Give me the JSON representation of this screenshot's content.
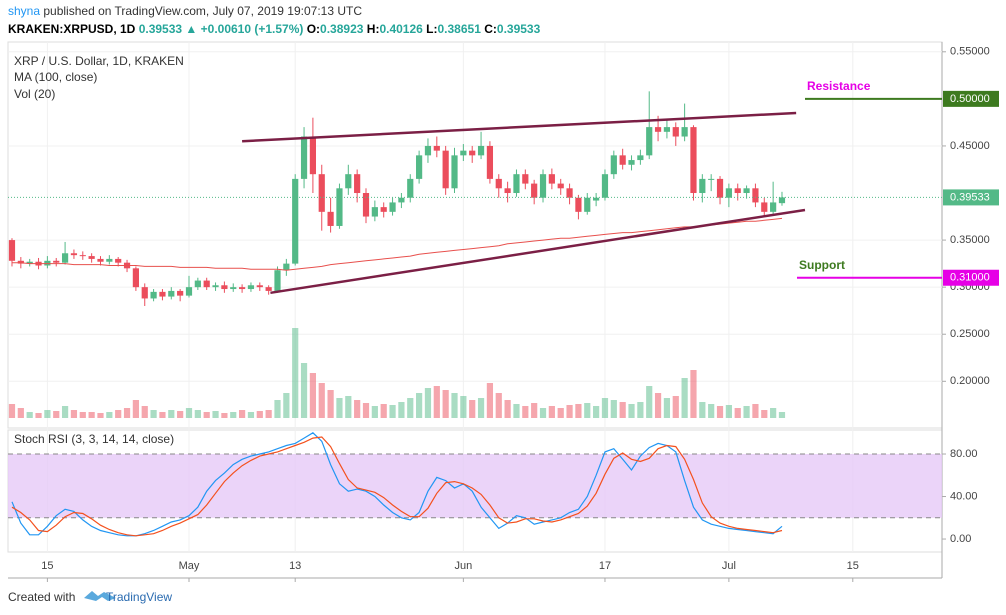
{
  "header": {
    "user": "shyna",
    "published": " published on TradingView.com, July 07, 2019 19:07:13 UTC",
    "line2": [
      "KRAKEN:XRPUSD, 1D",
      " 0.39533",
      " ▲",
      " +0.00610 (+1.57%)",
      " O:",
      "0.38923",
      " H:",
      "0.40126",
      " L:",
      "0.38651",
      " C:",
      "0.39533"
    ],
    "line2_colors": [
      "#000000",
      "#26a69a",
      "#26a69a",
      "#26a69a",
      "#000000",
      "#26a69a",
      "#000000",
      "#26a69a",
      "#000000",
      "#26a69a",
      "#000000",
      "#26a69a"
    ]
  },
  "chart_data": {
    "type": "candlestick",
    "legend": [
      "XRP / U.S. Dollar, 1D, KRAKEN",
      "MA (100, close)",
      "Vol (20)"
    ],
    "up_color": "#53b987",
    "down_color": "#eb4d5c",
    "ma_color": "#e8504d",
    "xlim": [
      -0.45,
      105.08
    ],
    "ylim": [
      0.1504,
      0.5604
    ],
    "xticks": [
      {
        "value": 4,
        "label": "15"
      },
      {
        "value": 20,
        "label": "May"
      },
      {
        "value": 32,
        "label": "13"
      },
      {
        "value": 51,
        "label": "Jun"
      },
      {
        "value": 67,
        "label": "17"
      },
      {
        "value": 81,
        "label": "Jul"
      },
      {
        "value": 95,
        "label": "15"
      }
    ],
    "yticks": [
      {
        "value": 0.55,
        "label": "0.55000"
      },
      {
        "value": 0.45,
        "label": "0.45000"
      },
      {
        "value": 0.35,
        "label": "0.35000"
      },
      {
        "value": 0.3,
        "label": "0.30000"
      },
      {
        "value": 0.25,
        "label": "0.25000"
      },
      {
        "value": 0.2,
        "label": "0.20000"
      }
    ],
    "price_tags": [
      {
        "value": 0.5,
        "label": "0.50000",
        "color": "#3d7a1f"
      },
      {
        "value": 0.39533,
        "label": "0.39533",
        "color": "#53b987"
      },
      {
        "value": 0.31,
        "label": "0.31000",
        "color": "#e600e6"
      }
    ],
    "hlines": [
      {
        "value": 0.5,
        "label": "Resistance",
        "line_color": "#3d7a1f",
        "label_color": "#e600e6"
      },
      {
        "value": 0.31,
        "label": "Support",
        "line_color": "#e600e6",
        "label_color": "#3d7a1f"
      }
    ],
    "trendlines": [
      {
        "color": "#7b1f45",
        "points": [
          [
            26,
            0.455
          ],
          [
            88.6,
            0.485
          ]
        ]
      },
      {
        "color": "#7b1f45",
        "points": [
          [
            29.2,
            0.294
          ],
          [
            89.6,
            0.382
          ]
        ]
      }
    ],
    "ohlc": [
      [
        0.35,
        0.352,
        0.322,
        0.328
      ],
      [
        0.328,
        0.332,
        0.32,
        0.325
      ],
      [
        0.325,
        0.33,
        0.322,
        0.327
      ],
      [
        0.327,
        0.331,
        0.319,
        0.323
      ],
      [
        0.323,
        0.333,
        0.32,
        0.328
      ],
      [
        0.328,
        0.331,
        0.322,
        0.326
      ],
      [
        0.326,
        0.348,
        0.324,
        0.336
      ],
      [
        0.336,
        0.34,
        0.33,
        0.334
      ],
      [
        0.334,
        0.338,
        0.329,
        0.333
      ],
      [
        0.333,
        0.336,
        0.326,
        0.33
      ],
      [
        0.33,
        0.333,
        0.323,
        0.327
      ],
      [
        0.327,
        0.334,
        0.324,
        0.33
      ],
      [
        0.33,
        0.332,
        0.322,
        0.326
      ],
      [
        0.326,
        0.329,
        0.316,
        0.32
      ],
      [
        0.32,
        0.322,
        0.296,
        0.3
      ],
      [
        0.3,
        0.304,
        0.28,
        0.288
      ],
      [
        0.288,
        0.298,
        0.285,
        0.295
      ],
      [
        0.295,
        0.298,
        0.286,
        0.29
      ],
      [
        0.29,
        0.3,
        0.287,
        0.296
      ],
      [
        0.296,
        0.298,
        0.285,
        0.291
      ],
      [
        0.291,
        0.312,
        0.289,
        0.3
      ],
      [
        0.3,
        0.31,
        0.297,
        0.307
      ],
      [
        0.307,
        0.31,
        0.297,
        0.3
      ],
      [
        0.3,
        0.305,
        0.296,
        0.302
      ],
      [
        0.302,
        0.306,
        0.294,
        0.298
      ],
      [
        0.298,
        0.304,
        0.295,
        0.3
      ],
      [
        0.3,
        0.303,
        0.294,
        0.298
      ],
      [
        0.298,
        0.305,
        0.295,
        0.302
      ],
      [
        0.302,
        0.305,
        0.296,
        0.3
      ],
      [
        0.3,
        0.302,
        0.292,
        0.296
      ],
      [
        0.296,
        0.322,
        0.294,
        0.318
      ],
      [
        0.318,
        0.33,
        0.312,
        0.325
      ],
      [
        0.325,
        0.42,
        0.323,
        0.415
      ],
      [
        0.415,
        0.47,
        0.405,
        0.46
      ],
      [
        0.46,
        0.48,
        0.4,
        0.42
      ],
      [
        0.42,
        0.43,
        0.36,
        0.38
      ],
      [
        0.38,
        0.395,
        0.358,
        0.365
      ],
      [
        0.365,
        0.41,
        0.362,
        0.405
      ],
      [
        0.405,
        0.43,
        0.398,
        0.42
      ],
      [
        0.42,
        0.425,
        0.39,
        0.4
      ],
      [
        0.4,
        0.405,
        0.368,
        0.375
      ],
      [
        0.375,
        0.392,
        0.37,
        0.385
      ],
      [
        0.385,
        0.39,
        0.374,
        0.38
      ],
      [
        0.38,
        0.395,
        0.376,
        0.39
      ],
      [
        0.39,
        0.4,
        0.384,
        0.395
      ],
      [
        0.395,
        0.42,
        0.39,
        0.415
      ],
      [
        0.415,
        0.445,
        0.41,
        0.44
      ],
      [
        0.44,
        0.458,
        0.432,
        0.45
      ],
      [
        0.45,
        0.46,
        0.438,
        0.445
      ],
      [
        0.445,
        0.45,
        0.398,
        0.405
      ],
      [
        0.405,
        0.448,
        0.4,
        0.44
      ],
      [
        0.44,
        0.452,
        0.434,
        0.445
      ],
      [
        0.445,
        0.45,
        0.432,
        0.44
      ],
      [
        0.44,
        0.465,
        0.436,
        0.45
      ],
      [
        0.45,
        0.455,
        0.41,
        0.415
      ],
      [
        0.415,
        0.42,
        0.395,
        0.405
      ],
      [
        0.405,
        0.412,
        0.39,
        0.4
      ],
      [
        0.4,
        0.425,
        0.396,
        0.42
      ],
      [
        0.42,
        0.425,
        0.404,
        0.41
      ],
      [
        0.41,
        0.414,
        0.388,
        0.395
      ],
      [
        0.395,
        0.425,
        0.39,
        0.42
      ],
      [
        0.42,
        0.426,
        0.404,
        0.41
      ],
      [
        0.41,
        0.415,
        0.398,
        0.405
      ],
      [
        0.405,
        0.41,
        0.388,
        0.395
      ],
      [
        0.395,
        0.398,
        0.372,
        0.38
      ],
      [
        0.38,
        0.4,
        0.377,
        0.395
      ],
      [
        0.392,
        0.4,
        0.386,
        0.395
      ],
      [
        0.395,
        0.425,
        0.392,
        0.42
      ],
      [
        0.42,
        0.445,
        0.415,
        0.44
      ],
      [
        0.44,
        0.447,
        0.425,
        0.43
      ],
      [
        0.43,
        0.44,
        0.424,
        0.435
      ],
      [
        0.435,
        0.446,
        0.43,
        0.44
      ],
      [
        0.44,
        0.508,
        0.436,
        0.47
      ],
      [
        0.47,
        0.482,
        0.455,
        0.465
      ],
      [
        0.465,
        0.478,
        0.458,
        0.47
      ],
      [
        0.47,
        0.475,
        0.45,
        0.46
      ],
      [
        0.46,
        0.495,
        0.455,
        0.47
      ],
      [
        0.47,
        0.472,
        0.392,
        0.4
      ],
      [
        0.4,
        0.42,
        0.39,
        0.415
      ],
      [
        0.415,
        0.42,
        0.402,
        0.415
      ],
      [
        0.415,
        0.418,
        0.388,
        0.395
      ],
      [
        0.395,
        0.41,
        0.385,
        0.405
      ],
      [
        0.405,
        0.41,
        0.392,
        0.4
      ],
      [
        0.4,
        0.408,
        0.394,
        0.405
      ],
      [
        0.405,
        0.41,
        0.385,
        0.39
      ],
      [
        0.39,
        0.395,
        0.376,
        0.38
      ],
      [
        0.38,
        0.412,
        0.377,
        0.39
      ],
      [
        0.38923,
        0.40126,
        0.38651,
        0.39533
      ]
    ],
    "ma": [
      0.326,
      0.326,
      0.325,
      0.325,
      0.325,
      0.325,
      0.325,
      0.324,
      0.324,
      0.324,
      0.324,
      0.323,
      0.323,
      0.323,
      0.323,
      0.322,
      0.322,
      0.322,
      0.322,
      0.321,
      0.321,
      0.321,
      0.321,
      0.32,
      0.32,
      0.32,
      0.32,
      0.319,
      0.319,
      0.319,
      0.319,
      0.318,
      0.319,
      0.32,
      0.321,
      0.322,
      0.324,
      0.325,
      0.326,
      0.327,
      0.328,
      0.329,
      0.33,
      0.331,
      0.332,
      0.333,
      0.335,
      0.336,
      0.337,
      0.338,
      0.339,
      0.34,
      0.341,
      0.342,
      0.343,
      0.344,
      0.346,
      0.347,
      0.348,
      0.349,
      0.35,
      0.351,
      0.352,
      0.352,
      0.353,
      0.354,
      0.355,
      0.356,
      0.357,
      0.358,
      0.358,
      0.359,
      0.36,
      0.361,
      0.362,
      0.363,
      0.364,
      0.364,
      0.365,
      0.366,
      0.367,
      0.368,
      0.369,
      0.37,
      0.37,
      0.371,
      0.372,
      0.373
    ],
    "vol_lim": [
      0,
      100
    ],
    "volume": [
      14,
      10,
      6,
      5,
      8,
      7,
      12,
      8,
      6,
      6,
      5,
      6,
      8,
      10,
      18,
      12,
      8,
      6,
      8,
      7,
      10,
      8,
      6,
      7,
      5,
      6,
      8,
      6,
      7,
      8,
      18,
      25,
      90,
      55,
      45,
      35,
      28,
      20,
      22,
      18,
      15,
      12,
      14,
      13,
      16,
      20,
      25,
      30,
      32,
      28,
      25,
      22,
      18,
      20,
      35,
      25,
      18,
      14,
      12,
      15,
      10,
      12,
      10,
      13,
      14,
      15,
      12,
      20,
      18,
      16,
      14,
      16,
      32,
      25,
      20,
      22,
      40,
      48,
      16,
      14,
      12,
      13,
      10,
      12,
      14,
      8,
      10,
      6
    ],
    "stoch": {
      "label": "Stoch RSI (3, 3, 14, 14, close)",
      "ylim": [
        -12.2,
        102.6
      ],
      "band": [
        20,
        80
      ],
      "band_color": "#e6c9f7",
      "yticks": [
        {
          "value": 80,
          "label": "80.00"
        },
        {
          "value": 40,
          "label": "40.00"
        },
        {
          "value": 0,
          "label": "0.00"
        }
      ],
      "series": [
        {
          "color": "#2196f3",
          "values": [
            35,
            15,
            4,
            4,
            12,
            22,
            28,
            26,
            18,
            12,
            8,
            6,
            4,
            3,
            3,
            5,
            8,
            12,
            16,
            18,
            22,
            30,
            45,
            55,
            62,
            70,
            75,
            78,
            80,
            82,
            85,
            88,
            90,
            95,
            100,
            92,
            70,
            52,
            45,
            47,
            45,
            40,
            32,
            25,
            20,
            18,
            25,
            45,
            58,
            55,
            48,
            52,
            45,
            30,
            20,
            10,
            15,
            22,
            20,
            14,
            16,
            18,
            20,
            25,
            28,
            40,
            60,
            82,
            85,
            75,
            65,
            78,
            86,
            90,
            88,
            82,
            55,
            30,
            18,
            14,
            12,
            10,
            9,
            8,
            7,
            6,
            5,
            12
          ]
        },
        {
          "color": "#f4511e",
          "values": [
            30,
            25,
            18,
            8,
            7,
            13,
            21,
            25,
            24,
            19,
            13,
            9,
            6,
            4,
            3,
            4,
            5,
            8,
            12,
            15,
            19,
            23,
            32,
            43,
            54,
            62,
            69,
            74,
            78,
            80,
            82,
            85,
            88,
            91,
            95,
            96,
            87,
            71,
            56,
            48,
            46,
            44,
            39,
            32,
            26,
            21,
            21,
            29,
            43,
            53,
            54,
            52,
            48,
            42,
            32,
            20,
            15,
            16,
            19,
            19,
            17,
            16,
            18,
            21,
            24,
            31,
            43,
            61,
            76,
            81,
            75,
            73,
            76,
            85,
            88,
            87,
            75,
            56,
            34,
            21,
            15,
            12,
            10,
            9,
            8,
            7,
            6,
            8
          ]
        }
      ]
    }
  },
  "footer": {
    "created": "Created with",
    "brand": "TradingView"
  }
}
